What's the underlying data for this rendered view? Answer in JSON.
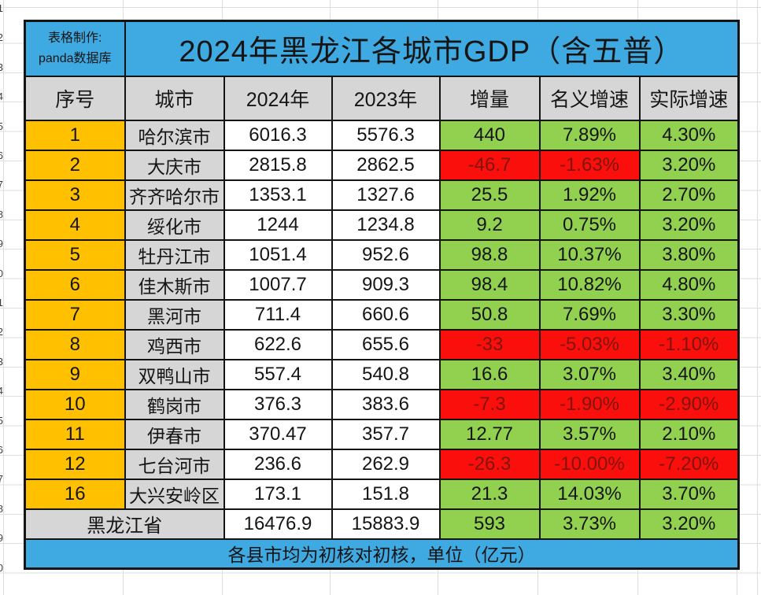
{
  "credit": {
    "line1": "表格制作:",
    "line2": "panda数据库"
  },
  "chart_data": {
    "type": "table",
    "title": "2024年黑龙江各城市GDP（含五普）",
    "columns": [
      "序号",
      "城市",
      "2024年",
      "2023年",
      "增量",
      "名义增速",
      "实际增速"
    ],
    "rows": [
      {
        "rank": "1",
        "city": "哈尔滨市",
        "y2024": "6016.3",
        "y2023": "5576.3",
        "delta": "440",
        "nominal": "7.89%",
        "real": "4.30%",
        "delta_neg": false,
        "nominal_neg": false,
        "real_neg": false
      },
      {
        "rank": "2",
        "city": "大庆市",
        "y2024": "2815.8",
        "y2023": "2862.5",
        "delta": "-46.7",
        "nominal": "-1.63%",
        "real": "3.20%",
        "delta_neg": true,
        "nominal_neg": true,
        "real_neg": false
      },
      {
        "rank": "3",
        "city": "齐齐哈尔市",
        "y2024": "1353.1",
        "y2023": "1327.6",
        "delta": "25.5",
        "nominal": "1.92%",
        "real": "2.70%",
        "delta_neg": false,
        "nominal_neg": false,
        "real_neg": false
      },
      {
        "rank": "4",
        "city": "绥化市",
        "y2024": "1244",
        "y2023": "1234.8",
        "delta": "9.2",
        "nominal": "0.75%",
        "real": "3.20%",
        "delta_neg": false,
        "nominal_neg": false,
        "real_neg": false
      },
      {
        "rank": "5",
        "city": "牡丹江市",
        "y2024": "1051.4",
        "y2023": "952.6",
        "delta": "98.8",
        "nominal": "10.37%",
        "real": "3.80%",
        "delta_neg": false,
        "nominal_neg": false,
        "real_neg": false
      },
      {
        "rank": "6",
        "city": "佳木斯市",
        "y2024": "1007.7",
        "y2023": "909.3",
        "delta": "98.4",
        "nominal": "10.82%",
        "real": "4.80%",
        "delta_neg": false,
        "nominal_neg": false,
        "real_neg": false
      },
      {
        "rank": "7",
        "city": "黑河市",
        "y2024": "711.4",
        "y2023": "660.6",
        "delta": "50.8",
        "nominal": "7.69%",
        "real": "3.30%",
        "delta_neg": false,
        "nominal_neg": false,
        "real_neg": false
      },
      {
        "rank": "8",
        "city": "鸡西市",
        "y2024": "622.6",
        "y2023": "655.6",
        "delta": "-33",
        "nominal": "-5.03%",
        "real": "-1.10%",
        "delta_neg": true,
        "nominal_neg": true,
        "real_neg": true
      },
      {
        "rank": "9",
        "city": "双鸭山市",
        "y2024": "557.4",
        "y2023": "540.8",
        "delta": "16.6",
        "nominal": "3.07%",
        "real": "3.40%",
        "delta_neg": false,
        "nominal_neg": false,
        "real_neg": false
      },
      {
        "rank": "10",
        "city": "鹤岗市",
        "y2024": "376.3",
        "y2023": "383.6",
        "delta": "-7.3",
        "nominal": "-1.90%",
        "real": "-2.90%",
        "delta_neg": true,
        "nominal_neg": true,
        "real_neg": true
      },
      {
        "rank": "11",
        "city": "伊春市",
        "y2024": "370.47",
        "y2023": "357.7",
        "delta": "12.77",
        "nominal": "3.57%",
        "real": "2.10%",
        "delta_neg": false,
        "nominal_neg": false,
        "real_neg": false
      },
      {
        "rank": "12",
        "city": "七台河市",
        "y2024": "236.6",
        "y2023": "262.9",
        "delta": "-26.3",
        "nominal": "-10.00%",
        "real": "-7.20%",
        "delta_neg": true,
        "nominal_neg": true,
        "real_neg": true
      },
      {
        "rank": "16",
        "city": "大兴安岭区",
        "y2024": "173.1",
        "y2023": "151.8",
        "delta": "21.3",
        "nominal": "14.03%",
        "real": "3.70%",
        "delta_neg": false,
        "nominal_neg": false,
        "real_neg": false
      }
    ],
    "total": {
      "label": "黑龙江省",
      "y2024": "16476.9",
      "y2023": "15883.9",
      "delta": "593",
      "nominal": "3.73%",
      "real": "3.20%"
    },
    "footnote": "各县市均为初核对初核，单位（亿元）"
  },
  "gutter_row_numbers": [
    "1",
    "2",
    "3",
    "4",
    "5",
    "6",
    "7",
    "8",
    "9",
    "10",
    "11",
    "12",
    "13",
    "14",
    "15",
    "16",
    "17",
    "18",
    "19",
    "20"
  ],
  "colors": {
    "header_blue": "#3FA9E1",
    "header_gray": "#D6D6D6",
    "rank_orange": "#FFC000",
    "positive_green": "#92D050",
    "negative_red": "#FB0F0C",
    "negative_text": "#7E150A",
    "border_black": "#141414"
  }
}
